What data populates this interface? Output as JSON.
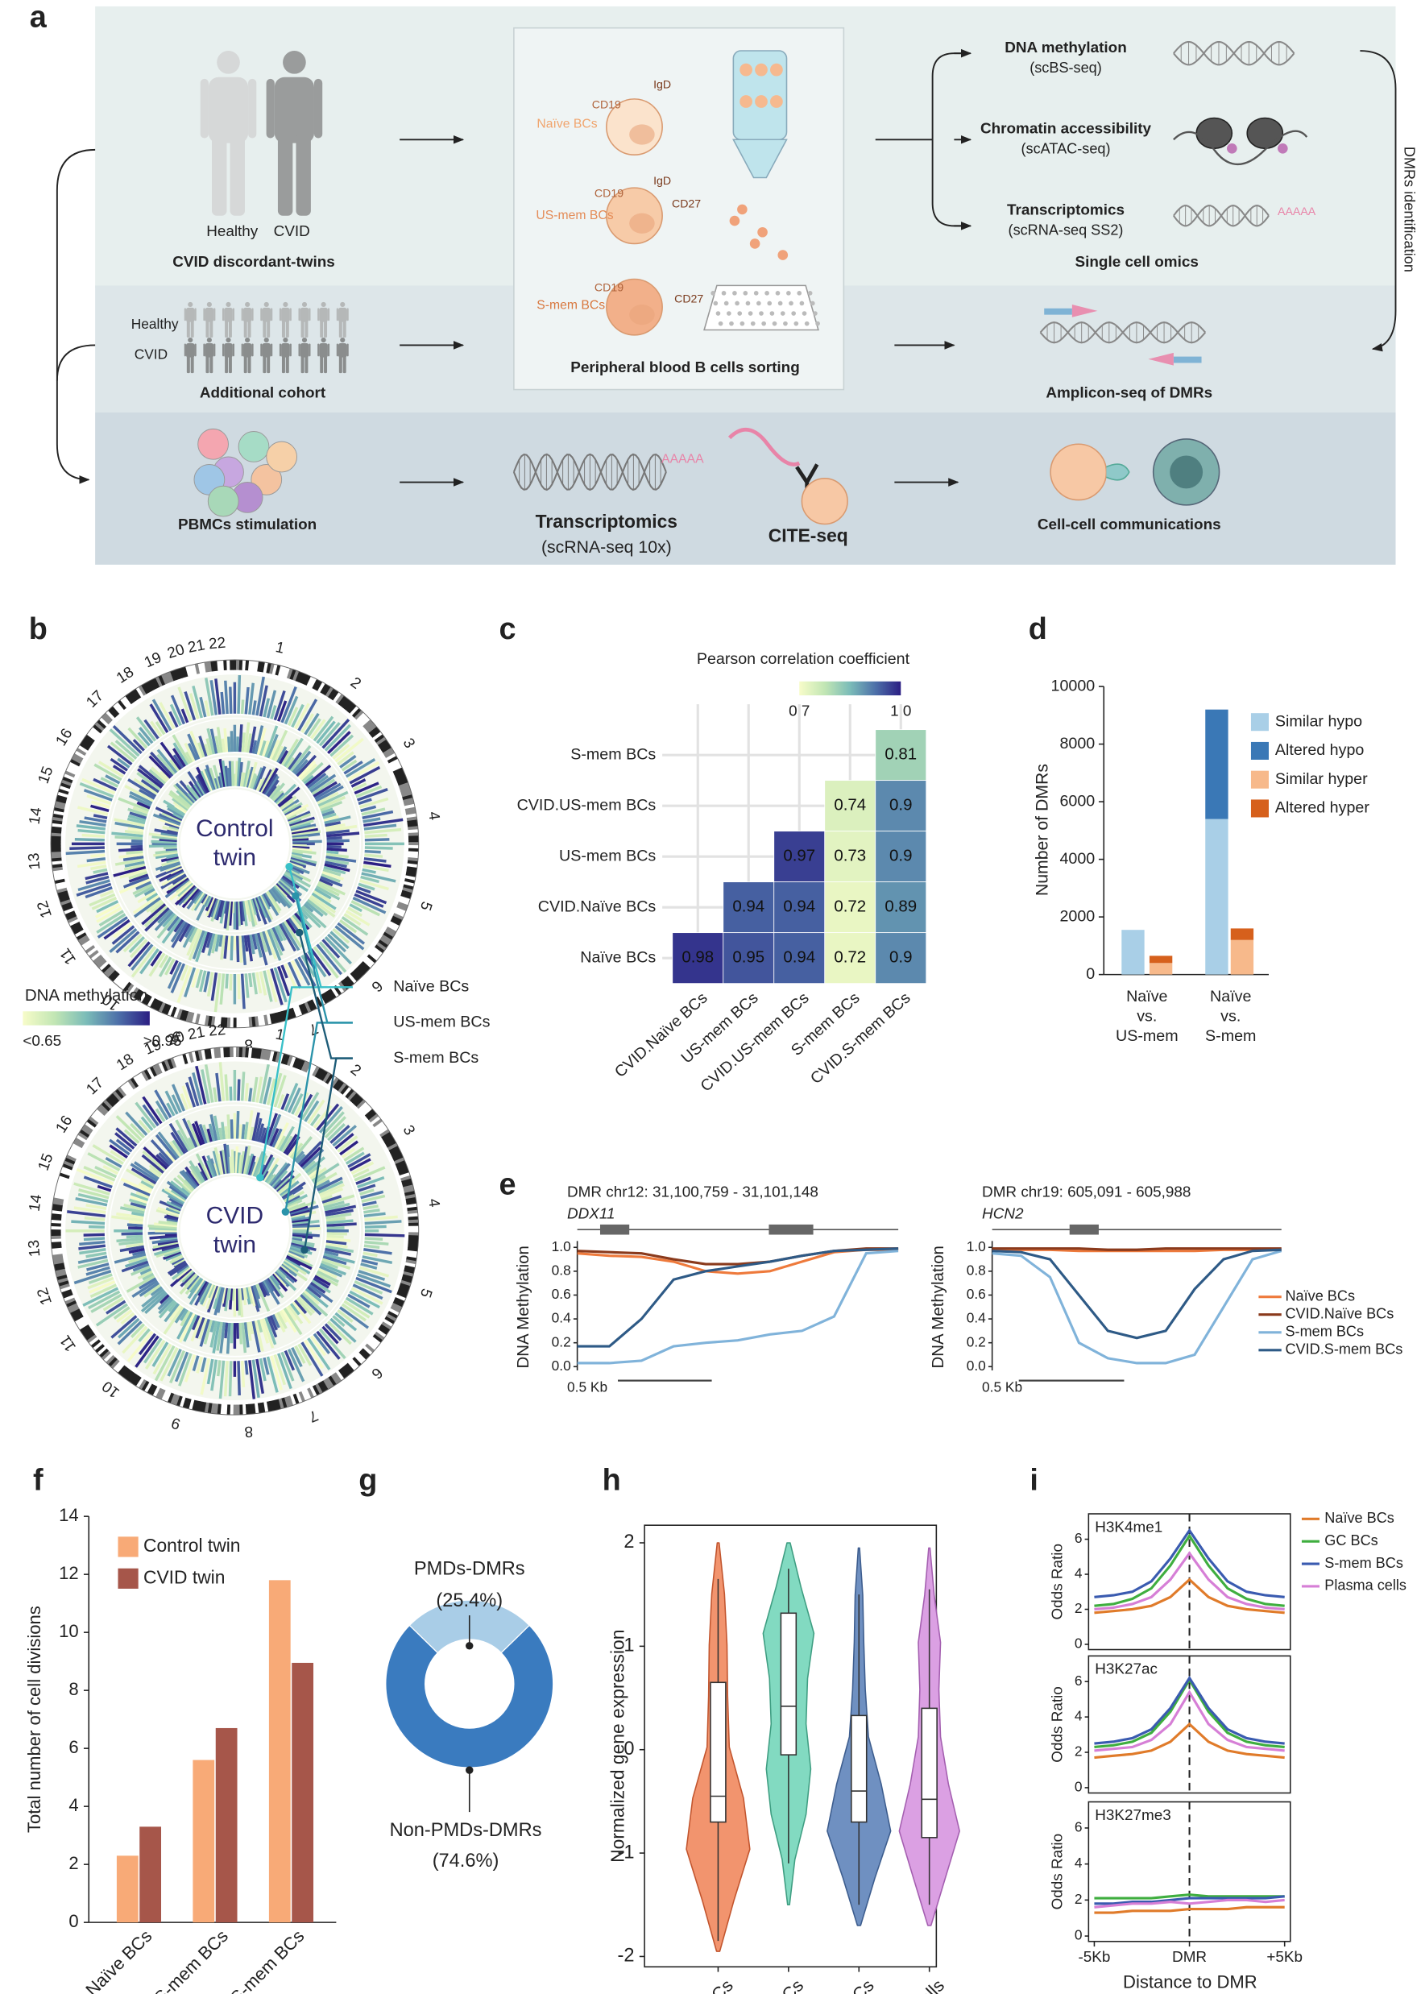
{
  "panel_labels": [
    "a",
    "b",
    "c",
    "d",
    "e",
    "f",
    "g",
    "h",
    "i"
  ],
  "panel_a": {
    "texts": [
      "Healthy",
      "CVID",
      "CVID discordant-twins",
      "CD19",
      "IgD",
      "Naïve BCs",
      "CD19",
      "IgD",
      "CD27",
      "US-mem BCs",
      "CD19",
      "CD27",
      "S-mem BCs",
      "Peripheral blood B cells sorting",
      "DNA methylation",
      "(scBS-seq)",
      "Chromatin accessibility",
      "(scATAC-seq)",
      "Transcriptomics",
      "(scRNA-seq SS2)",
      "AAAAA",
      "Single cell omics",
      "DMRs identification",
      "Healthy",
      "CVID",
      "Additional cohort",
      "Amplicon-seq of DMRs",
      "PBMCs stimulation",
      "AAAAA",
      "Transcriptomics",
      "(scRNA-seq 10x)",
      "CITE-seq",
      "Cell-cell communications"
    ]
  },
  "panel_b": {
    "chromosomes": [
      "1",
      "2",
      "3",
      "4",
      "5",
      "6",
      "7",
      "8",
      "9",
      "10",
      "11",
      "12",
      "13",
      "14",
      "15",
      "16",
      "17",
      "18",
      "19",
      "20",
      "21",
      "22"
    ],
    "plots": [
      {
        "center_label": [
          "Control",
          "twin"
        ]
      },
      {
        "center_label": [
          "CVID",
          "twin"
        ]
      }
    ],
    "legend_title": "DNA methylation",
    "legend_range": [
      {
        "value": 0.65,
        "label": "<0.65"
      },
      {
        "value": 0.95,
        "label": ">0.95"
      }
    ],
    "colorscale": [
      "#f7fcc9",
      "#c2e6b4",
      "#7bbcb8",
      "#4d70a9",
      "#2b1e83"
    ],
    "cell_types": [
      {
        "name": "Naïve BCs",
        "color": "#38c0c8"
      },
      {
        "name": "US-mem BCs",
        "color": "#2a93aa"
      },
      {
        "name": "S-mem BCs",
        "color": "#1d5c78"
      }
    ]
  },
  "panel_c": {
    "type": "heatmap",
    "title": "Pearson correlation coefficient",
    "rows": [
      "S-mem BCs",
      "CVID.US-mem BCs",
      "US-mem BCs",
      "CVID.Naïve BCs",
      "Naïve BCs"
    ],
    "columns": [
      "CVID.Naïve BCs",
      "US-mem BCs",
      "CVID.US-mem BCs",
      "S-mem BCs",
      "CVID.S-mem BCs"
    ],
    "values": [
      [
        null,
        null,
        null,
        null,
        0.81
      ],
      [
        null,
        null,
        null,
        0.74,
        0.9
      ],
      [
        null,
        null,
        0.97,
        0.73,
        0.9
      ],
      [
        null,
        0.94,
        0.94,
        0.72,
        0.89
      ],
      [
        0.98,
        0.95,
        0.94,
        0.72,
        0.9
      ]
    ],
    "clim": [
      0.7,
      1
    ],
    "cticks": [
      0.7,
      {
        "value": 1,
        "label": "1.0"
      }
    ],
    "colorscale": [
      "#f7fcc9",
      "#c2e6b4",
      "#7bbcb8",
      "#4d70a9",
      "#2b1e83"
    ]
  },
  "panel_d": {
    "type": "stacked_bar",
    "ylabel": "Number of DMRs",
    "ylim": [
      0,
      10000
    ],
    "yticks": [
      0,
      2000,
      4000,
      6000,
      8000,
      10000
    ],
    "categories": [
      [
        "Naïve",
        "vs.",
        "US-mem"
      ],
      [
        "Naïve",
        "vs.",
        "S-mem"
      ]
    ],
    "series": [
      {
        "name": "Similar hypo",
        "color": "#a9cfe7",
        "stack": "hypo",
        "values": [
          1550,
          5400
        ]
      },
      {
        "name": "Altered hypo",
        "color": "#3a78b6",
        "stack": "hypo",
        "values": [
          0,
          3800
        ]
      },
      {
        "name": "Similar hyper",
        "color": "#f7b98b",
        "stack": "hyper",
        "values": [
          400,
          1200
        ]
      },
      {
        "name": "Altered hyper",
        "color": "#d6601c",
        "stack": "hyper",
        "values": [
          250,
          400
        ]
      }
    ]
  },
  "panel_e": {
    "type": "line",
    "ylabel": "DNA Methylation",
    "ylim": [
      0,
      1
    ],
    "yticks": [
      {
        "value": 0,
        "label": "0.0"
      },
      0.2,
      0.4,
      0.6,
      0.8,
      {
        "value": 1,
        "label": "1.0"
      }
    ],
    "xlim": [
      0,
      100
    ],
    "x": [
      0,
      10,
      20,
      30,
      40,
      50,
      60,
      70,
      80,
      90,
      100
    ],
    "scale_bar": "0.5 Kb",
    "legend": [
      {
        "name": "Naïve BCs",
        "color": "#ee7a3c"
      },
      {
        "name": "CVID.Naïve BCs",
        "color": "#8a3a1c"
      },
      {
        "name": "S-mem BCs",
        "color": "#80b3da"
      },
      {
        "name": "CVID.S-mem BCs",
        "color": "#2e5a86"
      }
    ],
    "charts": [
      {
        "title": "DMR chr12: 31,100,759 - 31,101,148",
        "gene": "DDX11",
        "series_values": [
          [
            0.95,
            0.93,
            0.92,
            0.88,
            0.8,
            0.78,
            0.8,
            0.88,
            0.96,
            0.98,
            0.98
          ],
          [
            0.97,
            0.96,
            0.95,
            0.9,
            0.86,
            0.86,
            0.88,
            0.93,
            0.97,
            0.99,
            0.99
          ],
          [
            0.03,
            0.03,
            0.05,
            0.17,
            0.2,
            0.22,
            0.27,
            0.3,
            0.42,
            0.95,
            0.97
          ],
          [
            0.17,
            0.17,
            0.4,
            0.73,
            0.8,
            0.84,
            0.88,
            0.93,
            0.97,
            0.98,
            0.99
          ]
        ]
      },
      {
        "title": "DMR chr19: 605,091 - 605,988",
        "gene": "HCN2",
        "series_values": [
          [
            0.98,
            0.98,
            0.98,
            0.97,
            0.97,
            0.97,
            0.97,
            0.97,
            0.98,
            0.98,
            0.98
          ],
          [
            0.99,
            0.99,
            0.99,
            0.99,
            0.98,
            0.98,
            0.99,
            0.99,
            0.99,
            0.99,
            0.99
          ],
          [
            0.95,
            0.93,
            0.75,
            0.2,
            0.07,
            0.03,
            0.03,
            0.1,
            0.5,
            0.9,
            0.97
          ],
          [
            0.97,
            0.96,
            0.9,
            0.6,
            0.3,
            0.24,
            0.3,
            0.65,
            0.9,
            0.97,
            0.98
          ]
        ]
      }
    ]
  },
  "panel_f": {
    "type": "bar",
    "ylabel": "Total number of cell divisions",
    "ylim": [
      0,
      14
    ],
    "yticks": [
      0,
      2,
      4,
      6,
      8,
      10,
      12,
      14
    ],
    "categories": [
      "Naïve BCs",
      "US-mem BCs",
      "S-mem BCs"
    ],
    "series": [
      {
        "name": "Control twin",
        "color": "#f8aa77",
        "values": [
          2.3,
          5.6,
          11.8
        ]
      },
      {
        "name": "CVID twin",
        "color": "#a6564a",
        "values": [
          3.3,
          6.7,
          8.95
        ]
      }
    ]
  },
  "panel_g": {
    "type": "donut",
    "labels": [
      "PMDs-DMRs",
      "Non-PMDs-DMRs"
    ],
    "values": [
      25.4,
      74.6
    ],
    "value_labels": [
      "(25.4%)",
      "(74.6%)"
    ],
    "colors": [
      "#a9cde7",
      "#3a7bbf"
    ]
  },
  "panel_h": {
    "type": "violin",
    "ylabel": "Normalized gene expression",
    "ylim": [
      -2.1,
      2.17
    ],
    "yticks": [
      -2,
      -1,
      0,
      1,
      2
    ],
    "categories": [
      "Naïve BCs",
      "GC BCs",
      "S-mem BCs",
      "Plasma cells"
    ],
    "colors": [
      "#f2946e",
      "#82dac1",
      "#6f90c1",
      "#dba0e3"
    ],
    "edge_colors": [
      "#c2552e",
      "#3f9e82",
      "#3d5d8e",
      "#a45fb0"
    ],
    "violins": [
      {
        "range": [
          -1.95,
          2.0
        ],
        "density": [
          0.05,
          0.5,
          1.0,
          0.8,
          0.35,
          0.3,
          0.28,
          0.2,
          0.03
        ],
        "whiskers": [
          -1.85,
          1.65
        ],
        "q1": -0.7,
        "median": -0.45,
        "q3": 0.65
      },
      {
        "range": [
          -1.5,
          2.0
        ],
        "density": [
          0.03,
          0.2,
          0.55,
          0.7,
          0.55,
          0.6,
          0.8,
          0.4,
          0.05
        ],
        "whiskers": [
          -1.1,
          1.75
        ],
        "q1": -0.05,
        "median": 0.42,
        "q3": 1.32
      },
      {
        "range": [
          -1.7,
          1.95
        ],
        "density": [
          0.05,
          0.5,
          1.0,
          0.7,
          0.3,
          0.2,
          0.15,
          0.12,
          0.02
        ],
        "whiskers": [
          -1.5,
          1.5
        ],
        "q1": -0.7,
        "median": -0.4,
        "q3": 0.33
      },
      {
        "range": [
          -1.7,
          1.95
        ],
        "density": [
          0.05,
          0.5,
          0.95,
          0.6,
          0.35,
          0.3,
          0.35,
          0.15,
          0.02
        ],
        "whiskers": [
          -1.5,
          1.55
        ],
        "q1": -0.85,
        "median": -0.48,
        "q3": 0.4
      }
    ]
  },
  "panel_i": {
    "type": "line",
    "xlabel": "Distance to DMR",
    "ylabel": "Odds Ratio",
    "xlim": [
      -5.3,
      5.3
    ],
    "xticks": [
      {
        "value": -5,
        "label": "-5Kb"
      },
      {
        "value": 0,
        "label": "DMR"
      },
      {
        "value": 5,
        "label": "+5Kb"
      }
    ],
    "ylim": [
      -0.3,
      7.45
    ],
    "yticks": [
      0,
      2,
      4,
      6
    ],
    "x": [
      -5,
      -4,
      -3,
      -2,
      -1,
      0,
      1,
      2,
      3,
      4,
      5
    ],
    "legend": [
      {
        "name": "Naïve BCs",
        "color": "#e07b2a"
      },
      {
        "name": "GC BCs",
        "color": "#3fae3f"
      },
      {
        "name": "S-mem BCs",
        "color": "#3a5bb0"
      },
      {
        "name": "Plasma cells",
        "color": "#d67fd6"
      }
    ],
    "subplots": [
      {
        "title": "H3K4me1",
        "series_values": [
          [
            1.8,
            1.9,
            2.0,
            2.2,
            2.7,
            3.7,
            2.7,
            2.2,
            2.0,
            1.9,
            1.8
          ],
          [
            2.2,
            2.3,
            2.6,
            3.2,
            4.5,
            6.2,
            4.5,
            3.2,
            2.6,
            2.3,
            2.2
          ],
          [
            2.7,
            2.8,
            3.0,
            3.6,
            4.9,
            6.5,
            4.9,
            3.6,
            3.0,
            2.8,
            2.7
          ],
          [
            2.0,
            2.1,
            2.3,
            2.7,
            3.7,
            5.2,
            3.7,
            2.7,
            2.3,
            2.1,
            2.0
          ]
        ]
      },
      {
        "title": "H3K27ac",
        "series_values": [
          [
            1.7,
            1.8,
            1.9,
            2.1,
            2.6,
            3.6,
            2.6,
            2.1,
            1.9,
            1.8,
            1.7
          ],
          [
            2.3,
            2.4,
            2.6,
            3.1,
            4.3,
            6.1,
            4.3,
            3.1,
            2.6,
            2.4,
            2.3
          ],
          [
            2.5,
            2.6,
            2.8,
            3.3,
            4.5,
            6.2,
            4.5,
            3.3,
            2.8,
            2.6,
            2.5
          ],
          [
            2.1,
            2.2,
            2.3,
            2.7,
            3.6,
            5.4,
            3.6,
            2.7,
            2.3,
            2.2,
            2.1
          ]
        ]
      },
      {
        "title": "H3K27me3",
        "series_values": [
          [
            1.3,
            1.3,
            1.4,
            1.4,
            1.4,
            1.5,
            1.5,
            1.5,
            1.6,
            1.6,
            1.6
          ],
          [
            2.1,
            2.1,
            2.1,
            2.1,
            2.2,
            2.3,
            2.2,
            2.2,
            2.2,
            2.2,
            2.2
          ],
          [
            1.8,
            1.8,
            1.9,
            1.9,
            2.0,
            2.1,
            2.1,
            2.1,
            2.1,
            2.1,
            2.2
          ],
          [
            1.6,
            1.7,
            1.8,
            1.8,
            1.9,
            1.8,
            1.9,
            2.0,
            2.0,
            1.9,
            2.0
          ]
        ]
      }
    ]
  }
}
